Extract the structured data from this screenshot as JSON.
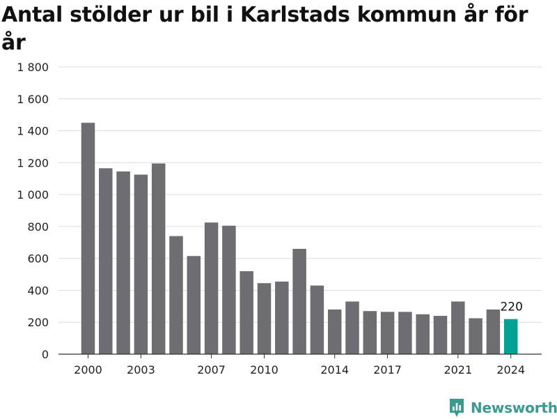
{
  "brand": {
    "name": "Newsworthy",
    "icon": "newsworthy-logo-icon",
    "color": "#3a9a8f"
  },
  "colors": {
    "bar": "#6e6d72",
    "highlight": "#00a295",
    "grid": "#dcdcdc",
    "axis": "#333333"
  },
  "chart_data": {
    "type": "bar",
    "title": "Antal stölder ur bil i Karlstads kommun år för år",
    "xlabel": "",
    "ylabel": "",
    "x": [
      2000,
      2001,
      2002,
      2003,
      2004,
      2005,
      2006,
      2007,
      2008,
      2009,
      2010,
      2011,
      2012,
      2013,
      2014,
      2015,
      2016,
      2017,
      2018,
      2019,
      2020,
      2021,
      2022,
      2023,
      2024
    ],
    "values": [
      1450,
      1165,
      1145,
      1125,
      1195,
      740,
      615,
      825,
      805,
      520,
      445,
      455,
      660,
      430,
      280,
      330,
      270,
      265,
      265,
      250,
      240,
      330,
      225,
      280,
      220
    ],
    "x_ticks": [
      "2000",
      "2003",
      "2007",
      "2010",
      "2014",
      "2017",
      "2021",
      "2024"
    ],
    "y_ticks": [
      0,
      200,
      400,
      600,
      800,
      1000,
      1200,
      1400,
      1600,
      1800
    ],
    "y_tick_labels": [
      "0",
      "200",
      "400",
      "600",
      "800",
      "1 000",
      "1 200",
      "1 400",
      "1 600",
      "1 800"
    ],
    "ylim": [
      0,
      1800
    ],
    "grid": true,
    "highlight_year": 2024,
    "highlight_label": "220"
  }
}
